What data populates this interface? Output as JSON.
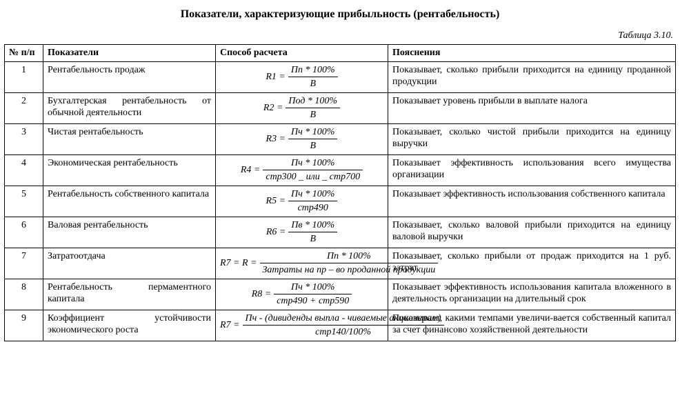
{
  "title": "Показатели, характеризующие прибыльность (рентабельность)",
  "caption": "Таблица 3.10.",
  "headers": {
    "num": "№ п/п",
    "indicator": "Показатели",
    "method": "Способ расчета",
    "explain": "Пояснения"
  },
  "rows": [
    {
      "n": "1",
      "indicator": "Рентабельность продаж",
      "formula": {
        "lhs": "R1 =",
        "num": "Пп * 100%",
        "den": "В"
      },
      "explain": "Показывает, сколько прибыли приходится на единицу проданной продукции"
    },
    {
      "n": "2",
      "indicator": "Бухгалтерская рентабельность от обычной деятельности",
      "formula": {
        "lhs": "R2 =",
        "num": "Под * 100%",
        "den": "В"
      },
      "explain": "Показывает уровень прибыли в выплате налога"
    },
    {
      "n": "3",
      "indicator": "Чистая рентабельность",
      "formula": {
        "lhs": "R3 =",
        "num": "Пч * 100%",
        "den": "В"
      },
      "explain": "Показывает, сколько чистой прибыли приходится на единицу выручки"
    },
    {
      "n": "4",
      "indicator": "Экономическая рентабельность",
      "formula": {
        "lhs": "R4 =",
        "num": "Пч * 100%",
        "den": "стр300 _ или _ стр700"
      },
      "explain": "Показывает эффективность использования всего имущества организации"
    },
    {
      "n": "5",
      "indicator": "Рентабельность собственного капитала",
      "formula": {
        "lhs": "R5 =",
        "num": "Пч * 100%",
        "den": "стр490"
      },
      "explain": "Показывает эффективность использования собственного капитала"
    },
    {
      "n": "6",
      "indicator": "Валовая рентабельность",
      "formula": {
        "lhs": "R6 =",
        "num": "Пв * 100%",
        "den": "В"
      },
      "explain": "Показывает, сколько валовой прибыли приходится на единицу валовой выручки"
    },
    {
      "n": "7",
      "indicator": "Затратоотдача",
      "formula": {
        "lhs": "R7 = R =",
        "num": "Пп * 100%",
        "den": "Затраты на пр – во проданной продукции"
      },
      "explain": "Показывает, сколько прибыли от продаж приходится на 1 руб. затрат"
    },
    {
      "n": "8",
      "indicator": "Рентабельность пермаментного капитала",
      "formula": {
        "lhs": "R8 =",
        "num": "Пч * 100%",
        "den": "стр490 + стр590"
      },
      "explain": "Показывает эффективность использования капитала вложенного в деятельность организации на длительный срок"
    },
    {
      "n": "9",
      "indicator": "Коэффициент устойчивости экономического роста",
      "formula": {
        "lhs": "R7 =",
        "num": "Пч - (дивиденды выпла - чиваемые акционерам)",
        "den": "стр140/100%"
      },
      "explain": "Показывает, какими темпами увеличи-вается собственный капитал за счет финансово хозяйственной деятельности"
    }
  ]
}
